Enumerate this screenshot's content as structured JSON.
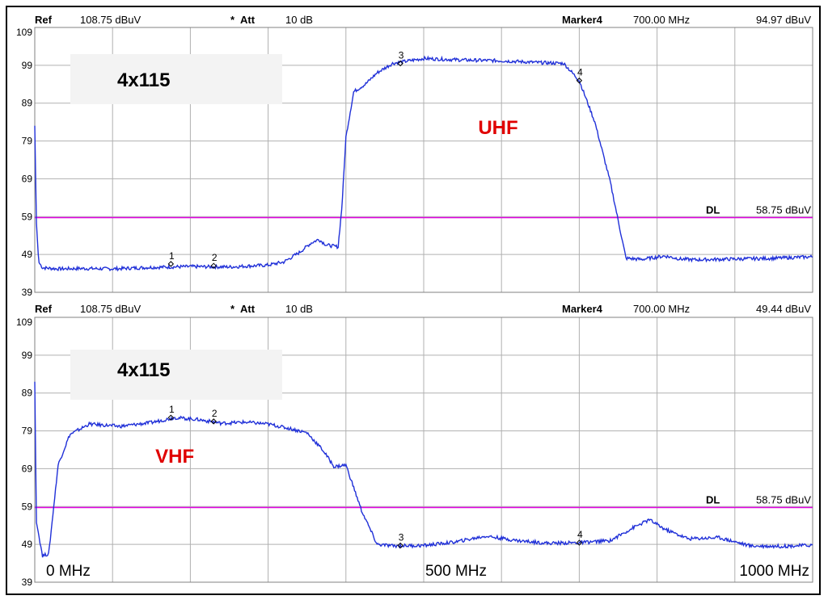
{
  "chart_data": [
    {
      "type": "line",
      "panel": "top",
      "header": {
        "ref_label": "Ref",
        "ref_value": "108.75 dBuV",
        "att_marker": "*",
        "att_label": "Att",
        "att_value": "10 dB",
        "marker_label": "Marker4",
        "marker_freq": "700.00 MHz",
        "marker_level": "94.97 dBuV"
      },
      "model_label": "4x115",
      "band_label": "UHF",
      "y_ticks": [
        "109",
        "99",
        "89",
        "79",
        "69",
        "59",
        "49",
        "39"
      ],
      "ylim": [
        39,
        109
      ],
      "xlim": [
        0,
        1000
      ],
      "display_line": {
        "label": "DL",
        "value_text": "58.75 dBuV",
        "value": 58.75
      },
      "markers": [
        {
          "label": "1",
          "x": 175,
          "y": 46.5
        },
        {
          "label": "2",
          "x": 230,
          "y": 46
        },
        {
          "label": "3",
          "x": 470,
          "y": 99.5
        },
        {
          "label": "4",
          "x": 700,
          "y": 94.97
        }
      ],
      "series": [
        {
          "values": [
            [
              0,
              83
            ],
            [
              2,
              58
            ],
            [
              5,
              47
            ],
            [
              10,
              45.5
            ],
            [
              30,
              45.2
            ],
            [
              60,
              45.3
            ],
            [
              100,
              45.2
            ],
            [
              150,
              45.6
            ],
            [
              200,
              45.8
            ],
            [
              250,
              45.7
            ],
            [
              300,
              46.2
            ],
            [
              320,
              47
            ],
            [
              340,
              49.5
            ],
            [
              355,
              52
            ],
            [
              365,
              53
            ],
            [
              375,
              51.5
            ],
            [
              390,
              51
            ],
            [
              395,
              62
            ],
            [
              400,
              80
            ],
            [
              410,
              92
            ],
            [
              425,
              94
            ],
            [
              440,
              97
            ],
            [
              460,
              99.5
            ],
            [
              500,
              100.8
            ],
            [
              550,
              100.4
            ],
            [
              600,
              100.2
            ],
            [
              650,
              99.7
            ],
            [
              680,
              99.5
            ],
            [
              700,
              94.97
            ],
            [
              720,
              84
            ],
            [
              740,
              68
            ],
            [
              760,
              48
            ],
            [
              780,
              47.7
            ],
            [
              810,
              48.6
            ],
            [
              830,
              47.8
            ],
            [
              850,
              47.6
            ],
            [
              900,
              47.8
            ],
            [
              950,
              48
            ],
            [
              1000,
              48.4
            ]
          ]
        }
      ]
    },
    {
      "type": "line",
      "panel": "bottom",
      "header": {
        "ref_label": "Ref",
        "ref_value": "108.75 dBuV",
        "att_marker": "*",
        "att_label": "Att",
        "att_value": "10 dB",
        "marker_label": "Marker4",
        "marker_freq": "700.00 MHz",
        "marker_level": "49.44 dBuV"
      },
      "model_label": "4x115",
      "band_label": "VHF",
      "y_ticks": [
        "109",
        "99",
        "89",
        "79",
        "69",
        "59",
        "49",
        "39"
      ],
      "ylim": [
        39,
        109
      ],
      "xlim": [
        0,
        1000
      ],
      "x_tick_labels": [
        "0 MHz",
        "500 MHz",
        "1000 MHz"
      ],
      "display_line": {
        "label": "DL",
        "value_text": "58.75 dBuV",
        "value": 58.75
      },
      "markers": [
        {
          "label": "1",
          "x": 175,
          "y": 82.5
        },
        {
          "label": "2",
          "x": 230,
          "y": 81.5
        },
        {
          "label": "3",
          "x": 470,
          "y": 48.7
        },
        {
          "label": "4",
          "x": 700,
          "y": 49.44
        }
      ],
      "series": [
        {
          "values": [
            [
              0,
              92
            ],
            [
              2,
              55
            ],
            [
              10,
              46
            ],
            [
              18,
              46.5
            ],
            [
              30,
              70
            ],
            [
              45,
              78
            ],
            [
              70,
              80.8
            ],
            [
              110,
              80.2
            ],
            [
              150,
              81.2
            ],
            [
              180,
              82.5
            ],
            [
              210,
              82
            ],
            [
              240,
              81
            ],
            [
              270,
              81.3
            ],
            [
              300,
              80.8
            ],
            [
              330,
              79.5
            ],
            [
              350,
              78.5
            ],
            [
              370,
              74
            ],
            [
              385,
              69.5
            ],
            [
              400,
              70
            ],
            [
              420,
              58
            ],
            [
              440,
              49
            ],
            [
              460,
              48.6
            ],
            [
              500,
              48.7
            ],
            [
              540,
              49.6
            ],
            [
              580,
              51.2
            ],
            [
              620,
              50
            ],
            [
              660,
              49.3
            ],
            [
              700,
              49.44
            ],
            [
              740,
              50
            ],
            [
              770,
              53.5
            ],
            [
              790,
              55.5
            ],
            [
              810,
              53
            ],
            [
              840,
              50.5
            ],
            [
              880,
              50.8
            ],
            [
              920,
              48.6
            ],
            [
              960,
              48.5
            ],
            [
              1000,
              48.8
            ]
          ]
        }
      ]
    }
  ]
}
